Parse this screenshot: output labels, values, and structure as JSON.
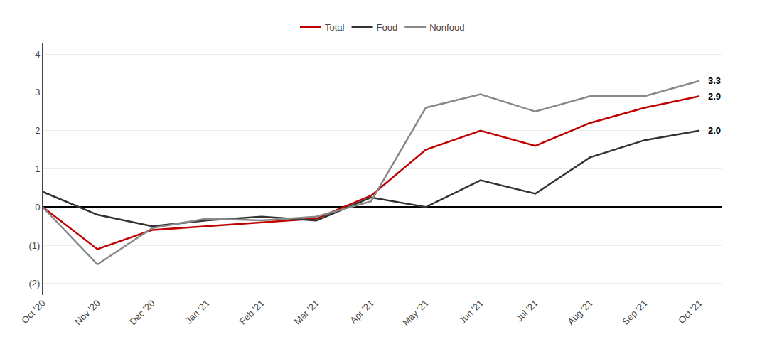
{
  "chart_data": {
    "type": "line",
    "categories": [
      "Oct '20",
      "Nov '20",
      "Dec '20",
      "Jan '21",
      "Feb '21",
      "Mar '21",
      "Apr '21",
      "May '21",
      "Jun '21",
      "Jul '21",
      "Aug '21",
      "Sep '21",
      "Oct '21"
    ],
    "series": [
      {
        "name": "Total",
        "color": "#c00000",
        "values": [
          0.0,
          -1.1,
          -0.6,
          -0.5,
          -0.4,
          -0.3,
          0.3,
          1.5,
          2.0,
          1.6,
          2.2,
          2.6,
          2.9
        ]
      },
      {
        "name": "Food",
        "color": "#333333",
        "values": [
          0.4,
          -0.2,
          -0.5,
          -0.35,
          -0.25,
          -0.35,
          0.25,
          0.0,
          0.7,
          0.35,
          1.3,
          1.75,
          2.0
        ]
      },
      {
        "name": "Nonfood",
        "color": "#888888",
        "values": [
          0.0,
          -1.5,
          -0.55,
          -0.3,
          -0.35,
          -0.25,
          0.15,
          2.6,
          2.95,
          2.5,
          2.9,
          2.9,
          3.3
        ]
      }
    ],
    "ylim": [
      -2.3,
      4.3
    ],
    "yticks": [
      {
        "value": -2,
        "label": "(2)"
      },
      {
        "value": -1,
        "label": "(1)"
      },
      0,
      1,
      2,
      3,
      4
    ],
    "annotations": [
      {
        "text": "3.3",
        "x": "Oct '21",
        "y": 3.3
      },
      {
        "text": "2.9",
        "x": "Oct '21",
        "y": 2.9
      },
      {
        "text": "2.0",
        "x": "Oct '21",
        "y": 2.0
      }
    ],
    "grid": true,
    "legend": "top"
  }
}
